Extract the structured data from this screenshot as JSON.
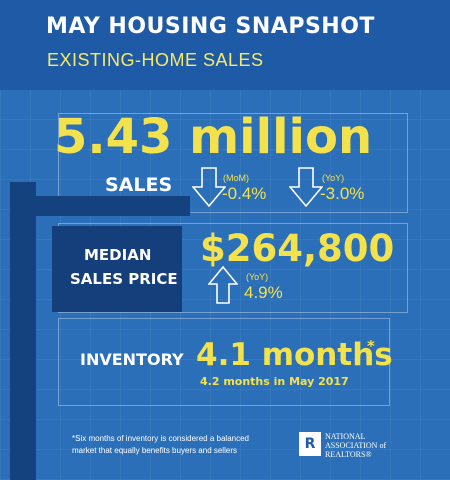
{
  "header": {
    "title": "MAY HOUSING SNAPSHOT",
    "subtitle": "EXISTING-HOME SALES"
  },
  "sales": {
    "value": "5.43 million",
    "label": "SALES",
    "mom": {
      "tag": "(MoM)",
      "change": "-0.4%"
    },
    "yoy": {
      "tag": "(YoY)",
      "change": "-3.0%"
    }
  },
  "median_price": {
    "label_line1": "MEDIAN",
    "label_line2": "SALES PRICE",
    "value": "$264,800",
    "yoy": {
      "tag": "(YoY)",
      "change": "4.9%"
    }
  },
  "inventory": {
    "label": "INVENTORY",
    "value": "4.1 months",
    "asterisk": "*",
    "comparison": "4.2 months in May 2017"
  },
  "footer": {
    "note": "*Six months of inventory is considered a balanced market that equally benefits buyers and sellers",
    "logo_letter": "R",
    "org_line1": "NATIONAL",
    "org_line2": "ASSOCIATION of",
    "org_line3": "REALTORS®"
  },
  "colors": {
    "background": "#2a6fb8",
    "header": "#1f5aa6",
    "accent_yellow": "#f4e24c",
    "sign_navy": "#13427f"
  },
  "icons": {
    "down_arrow": "down-arrow-icon",
    "up_arrow": "up-arrow-icon"
  }
}
